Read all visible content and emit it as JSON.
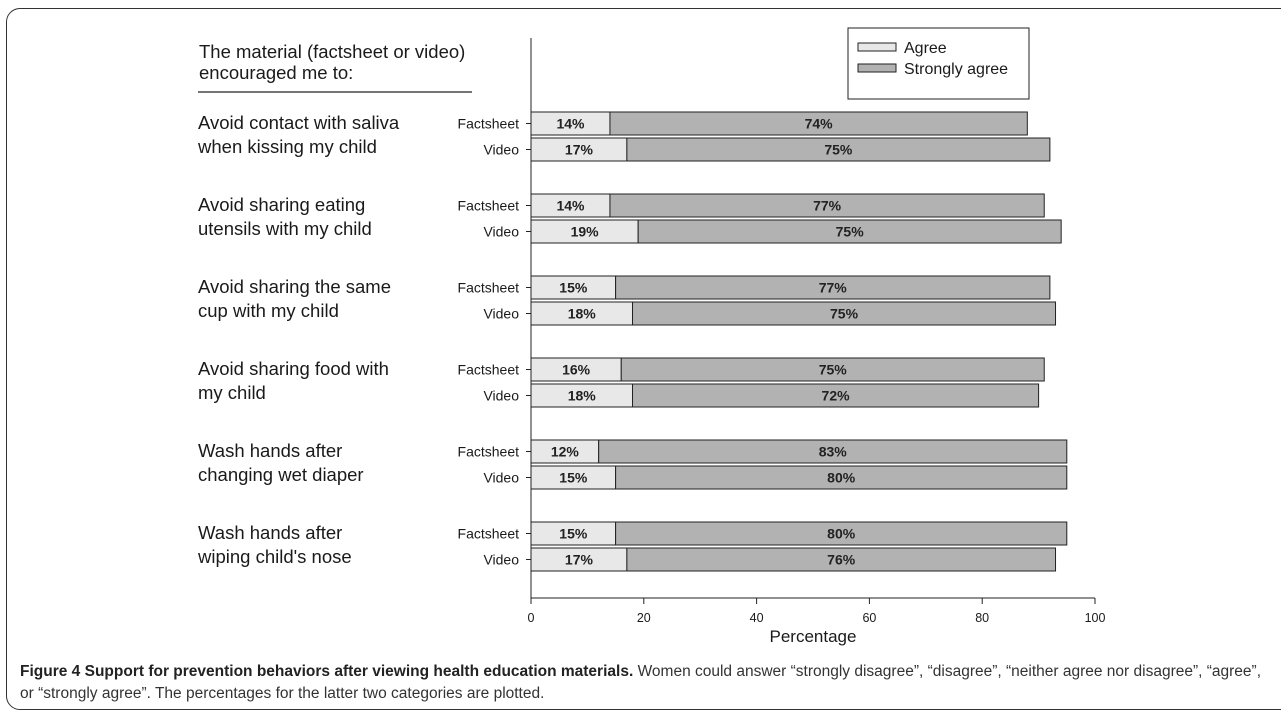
{
  "chart_data": {
    "type": "bar",
    "stacked": true,
    "orientation": "horizontal",
    "heading": [
      "The material (factsheet or video)",
      "encouraged me to:"
    ],
    "xlabel": "Percentage",
    "xlim": [
      0,
      100
    ],
    "xticks": [
      0,
      20,
      40,
      60,
      80,
      100
    ],
    "legend": {
      "position": "top-right",
      "entries": [
        "Agree",
        "Strongly agree"
      ]
    },
    "colors": {
      "agree": "#e8e8e8",
      "strongly_agree": "#b2b2b2",
      "border": "#222222"
    },
    "groups": [
      {
        "label": [
          "Avoid contact with saliva",
          " when kissing my child"
        ],
        "bars": [
          {
            "name": "Factsheet",
            "agree": 14,
            "strongly_agree": 74,
            "agree_label": "14%",
            "strongly_label": "74%"
          },
          {
            "name": "Video",
            "agree": 17,
            "strongly_agree": 75,
            "agree_label": "17%",
            "strongly_label": "75%"
          }
        ]
      },
      {
        "label": [
          "Avoid sharing eating",
          "utensils with my child"
        ],
        "bars": [
          {
            "name": "Factsheet",
            "agree": 14,
            "strongly_agree": 77,
            "agree_label": "14%",
            "strongly_label": "77%"
          },
          {
            "name": "Video",
            "agree": 19,
            "strongly_agree": 75,
            "agree_label": "19%",
            "strongly_label": "75%"
          }
        ]
      },
      {
        "label": [
          "Avoid sharing the same",
          "cup with my child"
        ],
        "bars": [
          {
            "name": "Factsheet",
            "agree": 15,
            "strongly_agree": 77,
            "agree_label": "15%",
            "strongly_label": "77%"
          },
          {
            "name": "Video",
            "agree": 18,
            "strongly_agree": 75,
            "agree_label": "18%",
            "strongly_label": "75%"
          }
        ]
      },
      {
        "label": [
          "Avoid sharing food with",
          "my child"
        ],
        "bars": [
          {
            "name": "Factsheet",
            "agree": 16,
            "strongly_agree": 75,
            "agree_label": "16%",
            "strongly_label": "75%"
          },
          {
            "name": "Video",
            "agree": 18,
            "strongly_agree": 72,
            "agree_label": "18%",
            "strongly_label": "72%"
          }
        ]
      },
      {
        "label": [
          "Wash hands after",
          "changing wet diaper"
        ],
        "bars": [
          {
            "name": "Factsheet",
            "agree": 12,
            "strongly_agree": 83,
            "agree_label": "12%",
            "strongly_label": "83%"
          },
          {
            "name": "Video",
            "agree": 15,
            "strongly_agree": 80,
            "agree_label": "15%",
            "strongly_label": "80%"
          }
        ]
      },
      {
        "label": [
          "Wash hands after",
          "wiping child's nose"
        ],
        "bars": [
          {
            "name": "Factsheet",
            "agree": 15,
            "strongly_agree": 80,
            "agree_label": "15%",
            "strongly_label": "80%"
          },
          {
            "name": "Video",
            "agree": 17,
            "strongly_agree": 76,
            "agree_label": "17%",
            "strongly_label": "76%"
          }
        ]
      }
    ]
  },
  "caption": {
    "label": "Figure 4",
    "title": "Support for prevention behaviors after viewing health education materials.",
    "text": "Women could answer “strongly disagree”, “disagree”, “neither agree nor disagree”, “agree”, or “strongly agree”. The percentages for the latter two categories are plotted."
  }
}
